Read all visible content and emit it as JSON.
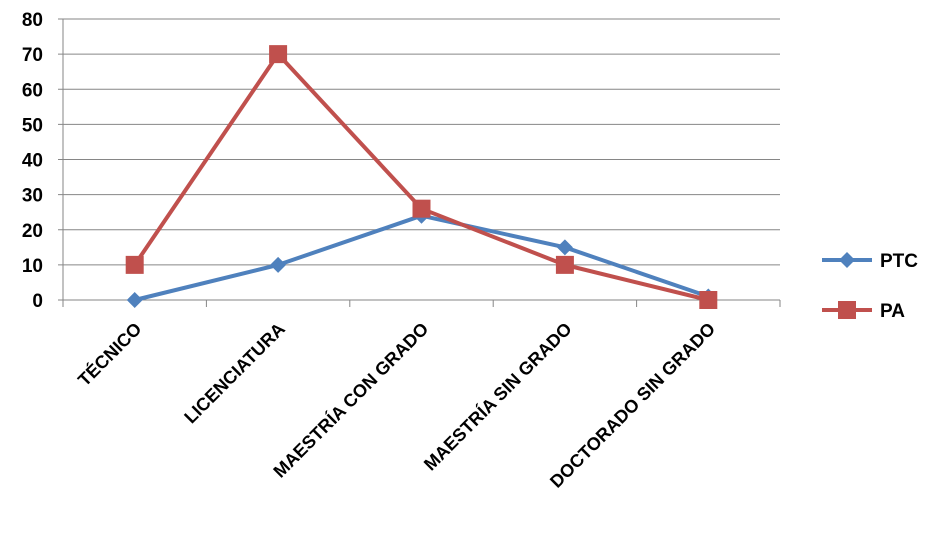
{
  "chart_data": {
    "type": "line",
    "categories": [
      "TÉCNICO",
      "LICENCIATURA",
      "MAESTRÍA CON GRADO",
      "MAESTRÍA SIN GRADO",
      "DOCTORADO SIN GRADO"
    ],
    "series": [
      {
        "name": "PTC",
        "values": [
          0,
          10,
          24,
          15,
          1
        ],
        "color": "#4F81BD",
        "marker": "diamond"
      },
      {
        "name": "PA",
        "values": [
          10,
          70,
          26,
          10,
          0
        ],
        "color": "#C0504D",
        "marker": "square"
      }
    ],
    "title": "",
    "xlabel": "",
    "ylabel": "",
    "ylim": [
      0,
      80
    ],
    "yticks": [
      0,
      10,
      20,
      30,
      40,
      50,
      60,
      70,
      80
    ],
    "grid": true,
    "legend": "right"
  }
}
